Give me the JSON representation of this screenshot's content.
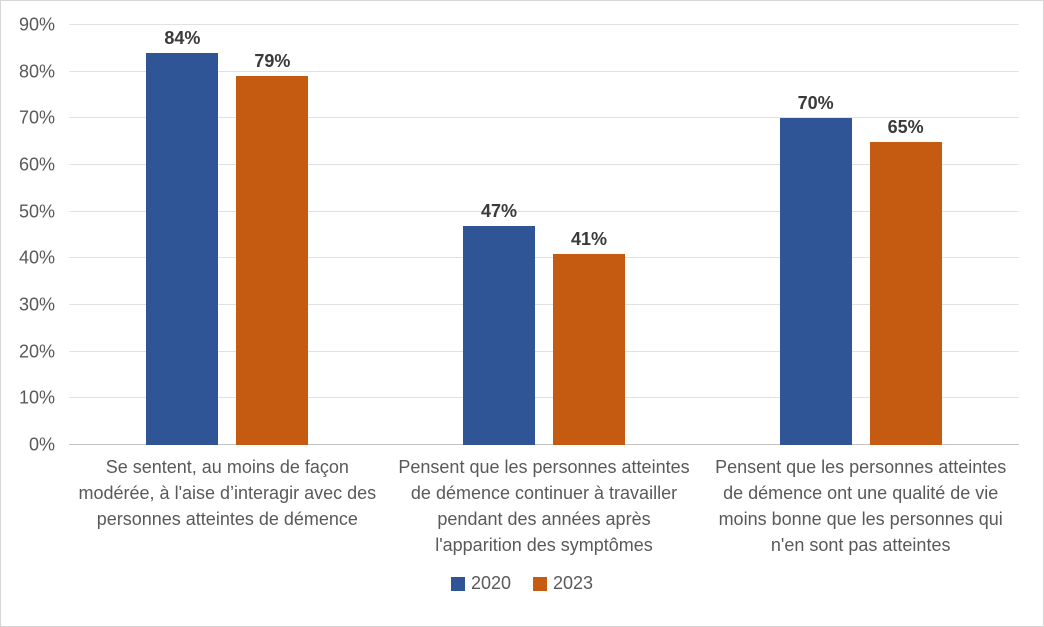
{
  "chart_data": {
    "type": "bar",
    "title": "",
    "xlabel": "",
    "ylabel": "",
    "categories": [
      "Se sentent, au moins de façon modérée, à l'aise d’interagir avec des personnes atteintes de démence",
      "Pensent que les personnes atteintes de démence continuer à travailler pendant des années après l'apparition des symptômes",
      "Pensent que les personnes atteintes de démence ont  une qualité de vie moins bonne que les personnes qui n'en sont pas atteintes"
    ],
    "series": [
      {
        "name": "2020",
        "color": "#2F5597",
        "values": [
          84,
          47,
          70
        ]
      },
      {
        "name": "2023",
        "color": "#C55A11",
        "values": [
          79,
          41,
          65
        ]
      }
    ],
    "data_labels": [
      [
        "84%",
        "47%",
        "70%"
      ],
      [
        "79%",
        "41%",
        "65%"
      ]
    ],
    "value_suffix": "%",
    "ylim": [
      0,
      90
    ],
    "yticks": [
      {
        "value": 0,
        "label": "0%"
      },
      {
        "value": 10,
        "label": "10%"
      },
      {
        "value": 20,
        "label": "20%"
      },
      {
        "value": 30,
        "label": "30%"
      },
      {
        "value": 40,
        "label": "40%"
      },
      {
        "value": 50,
        "label": "50%"
      },
      {
        "value": 60,
        "label": "60%"
      },
      {
        "value": 70,
        "label": "70%"
      },
      {
        "value": 80,
        "label": "80%"
      },
      {
        "value": 90,
        "label": "90%"
      }
    ],
    "grid": true,
    "legend_position": "bottom"
  },
  "colors": {
    "series_2020": "#2F5597",
    "series_2023": "#C55A11",
    "gridline": "#e1e1e1",
    "axis_line": "#c3c3c3",
    "tick_text": "#595959",
    "data_label_text": "#3a3a3a",
    "figure_border": "#d6d6d6",
    "background": "#ffffff"
  }
}
